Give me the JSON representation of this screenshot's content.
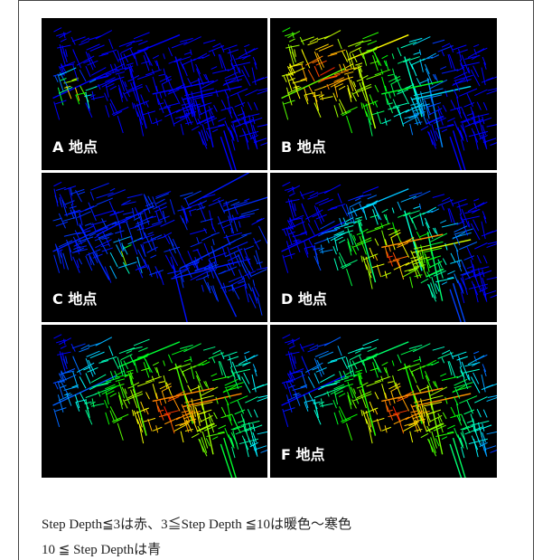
{
  "panels": [
    "A 地点",
    "B 地点",
    "C 地点",
    "D 地点",
    null,
    "F 地点"
  ],
  "caption": [
    "Step Depth≦3は赤、3≦Step Depth ≦10は暖色〜寒色",
    "10 ≦ Step Depthは青"
  ]
}
